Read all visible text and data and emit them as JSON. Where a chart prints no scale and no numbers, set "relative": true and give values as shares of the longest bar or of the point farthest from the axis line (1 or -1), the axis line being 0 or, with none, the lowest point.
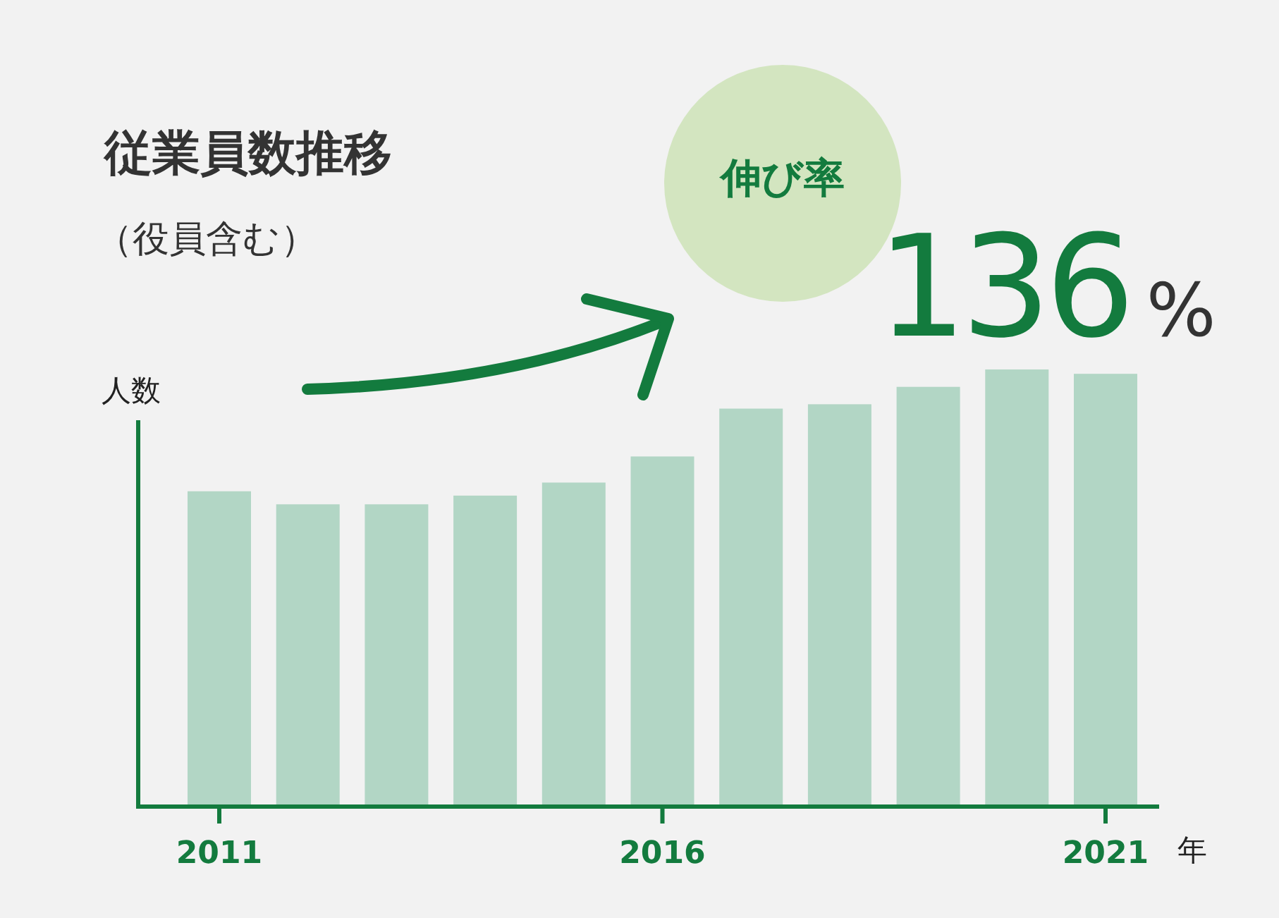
{
  "chart_data": {
    "type": "bar",
    "title": "従業員数推移",
    "subtitle": "（役員含む）",
    "xlabel": "年",
    "ylabel": "人数",
    "categories": [
      "2011",
      null,
      null,
      null,
      null,
      "2016",
      null,
      null,
      null,
      null,
      "2021"
    ],
    "relative": true,
    "values": [
      0.72,
      0.69,
      0.69,
      0.71,
      0.74,
      0.8,
      0.91,
      0.92,
      0.96,
      1,
      0.99
    ],
    "color": "#b2d6c5",
    "annotations": [
      "伸び率",
      "136%"
    ]
  }
}
